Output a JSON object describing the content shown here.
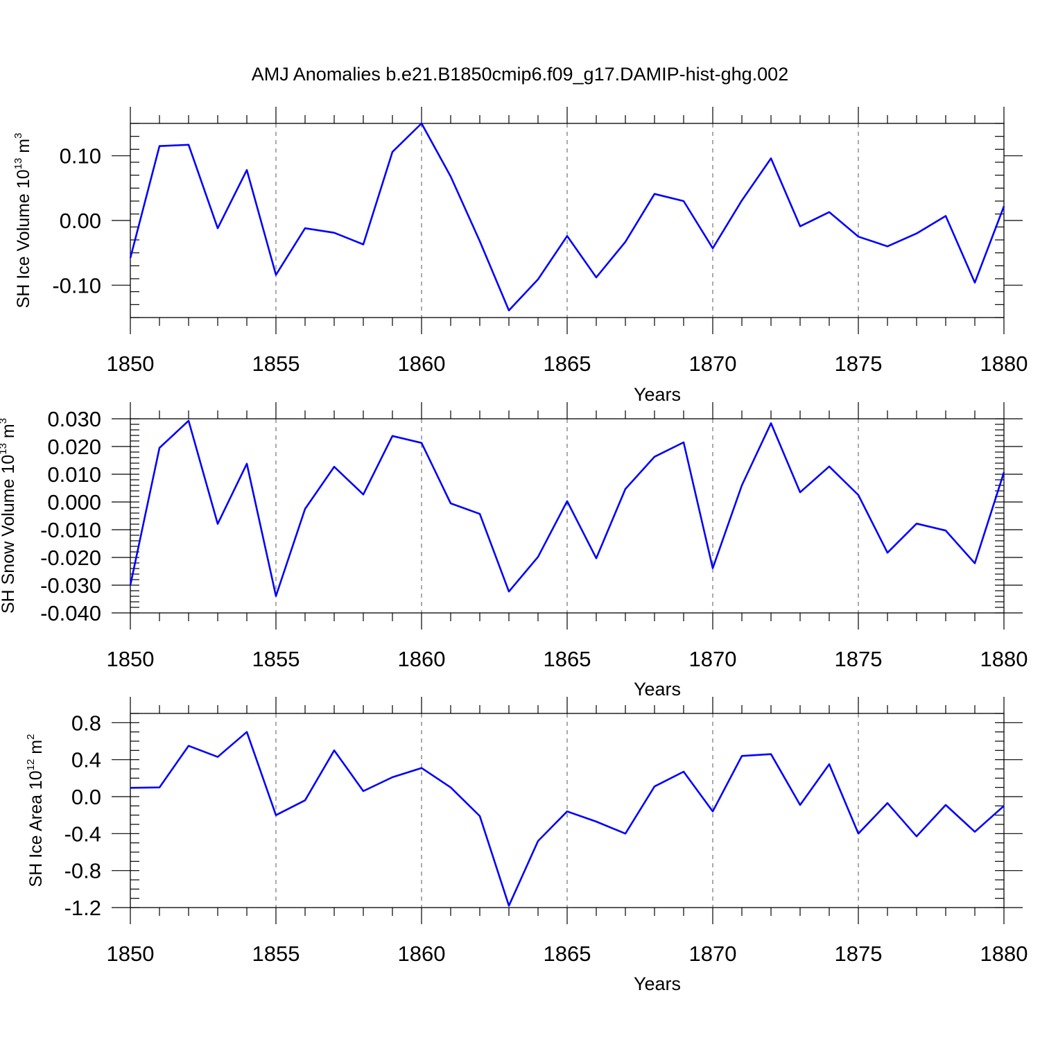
{
  "figure": {
    "title": "AMJ Anomalies b.e21.B1850cmip6.f09_g17.DAMIP-hist-ghg.002"
  },
  "colors": {
    "series": "#0000ff",
    "axis": "#000000"
  },
  "chart_data": [
    {
      "type": "line",
      "name": "sh-ice-volume",
      "ylabel": {
        "main": "SH Ice Volume 10",
        "exp": "13",
        "unit": " m",
        "unit_exp": "3"
      },
      "xlabel": "Years",
      "xlim": [
        1850,
        1880
      ],
      "ylim": [
        -0.15,
        0.15
      ],
      "xticks": [
        1850,
        1855,
        1860,
        1865,
        1870,
        1875,
        1880
      ],
      "xtick_labels": [
        "1850",
        "1855",
        "1860",
        "1865",
        "1870",
        "1875",
        "1880"
      ],
      "yticks": [
        -0.1,
        0.0,
        0.1
      ],
      "ytick_labels": [
        "-0.10",
        "0.00",
        "0.10"
      ],
      "yminor_step": 0.02,
      "grid": "vertical dashed at major x ticks",
      "x": [
        1850,
        1851,
        1852,
        1853,
        1854,
        1855,
        1856,
        1857,
        1858,
        1859,
        1860,
        1861,
        1862,
        1863,
        1864,
        1865,
        1866,
        1867,
        1868,
        1869,
        1870,
        1871,
        1872,
        1873,
        1874,
        1875,
        1876,
        1877,
        1878,
        1879,
        1880
      ],
      "values": [
        -0.058,
        0.115,
        0.117,
        -0.012,
        0.078,
        -0.084,
        -0.012,
        -0.019,
        -0.037,
        0.106,
        0.15,
        0.068,
        -0.032,
        -0.139,
        -0.091,
        -0.024,
        -0.088,
        -0.033,
        0.041,
        0.03,
        -0.043,
        0.031,
        0.096,
        -0.009,
        0.013,
        -0.025,
        -0.04,
        -0.02,
        0.007,
        -0.096,
        0.022
      ]
    },
    {
      "type": "line",
      "name": "sh-snow-volume",
      "ylabel": {
        "main": "SH Snow Volume 10",
        "exp": "13",
        "unit": " m",
        "unit_exp": "3"
      },
      "xlabel": "Years",
      "xlim": [
        1850,
        1880
      ],
      "ylim": [
        -0.04,
        0.03
      ],
      "xticks": [
        1850,
        1855,
        1860,
        1865,
        1870,
        1875,
        1880
      ],
      "xtick_labels": [
        "1850",
        "1855",
        "1860",
        "1865",
        "1870",
        "1875",
        "1880"
      ],
      "yticks": [
        -0.04,
        -0.03,
        -0.02,
        -0.01,
        0.0,
        0.01,
        0.02,
        0.03
      ],
      "ytick_labels": [
        "-0.040",
        "-0.030",
        "-0.020",
        "-0.010",
        "0.000",
        "0.010",
        "0.020",
        "0.030"
      ],
      "yminor_step": 0.002,
      "grid": "vertical dashed at major x ticks",
      "x": [
        1850,
        1851,
        1852,
        1853,
        1854,
        1855,
        1856,
        1857,
        1858,
        1859,
        1860,
        1861,
        1862,
        1863,
        1864,
        1865,
        1866,
        1867,
        1868,
        1869,
        1870,
        1871,
        1872,
        1873,
        1874,
        1875,
        1876,
        1877,
        1878,
        1879,
        1880
      ],
      "values": [
        -0.03,
        0.0195,
        0.0293,
        -0.0079,
        0.0138,
        -0.0339,
        -0.0025,
        0.0127,
        0.0027,
        0.0238,
        0.0213,
        -0.0005,
        -0.0043,
        -0.0323,
        -0.0198,
        0.0003,
        -0.0203,
        0.0047,
        0.0163,
        0.0215,
        -0.0239,
        0.006,
        0.0284,
        0.0035,
        0.0128,
        0.0025,
        -0.0183,
        -0.0078,
        -0.0103,
        -0.0221,
        0.0107
      ]
    },
    {
      "type": "line",
      "name": "sh-ice-area",
      "ylabel": {
        "main": "SH Ice Area 10",
        "exp": "12",
        "unit": " m",
        "unit_exp": "2"
      },
      "xlabel": "Years",
      "xlim": [
        1850,
        1880
      ],
      "ylim": [
        -1.2,
        0.9
      ],
      "xticks": [
        1850,
        1855,
        1860,
        1865,
        1870,
        1875,
        1880
      ],
      "xtick_labels": [
        "1850",
        "1855",
        "1860",
        "1865",
        "1870",
        "1875",
        "1880"
      ],
      "yticks": [
        -1.2,
        -0.8,
        -0.4,
        0.0,
        0.4,
        0.8
      ],
      "ytick_labels": [
        "-1.2",
        "-0.8",
        "-0.4",
        "0.0",
        "0.4",
        "0.8"
      ],
      "yminor_step": 0.1,
      "grid": "vertical dashed at major x ticks",
      "x": [
        1850,
        1851,
        1852,
        1853,
        1854,
        1855,
        1856,
        1857,
        1858,
        1859,
        1860,
        1861,
        1862,
        1863,
        1864,
        1865,
        1866,
        1867,
        1868,
        1869,
        1870,
        1871,
        1872,
        1873,
        1874,
        1875,
        1876,
        1877,
        1878,
        1879,
        1880
      ],
      "values": [
        0.095,
        0.1,
        0.55,
        0.43,
        0.7,
        -0.2,
        -0.04,
        0.5,
        0.06,
        0.21,
        0.31,
        0.1,
        -0.21,
        -1.18,
        -0.48,
        -0.16,
        -0.27,
        -0.4,
        0.11,
        0.27,
        -0.16,
        0.44,
        0.46,
        -0.09,
        0.35,
        -0.4,
        -0.07,
        -0.43,
        -0.09,
        -0.38,
        -0.1
      ]
    }
  ]
}
